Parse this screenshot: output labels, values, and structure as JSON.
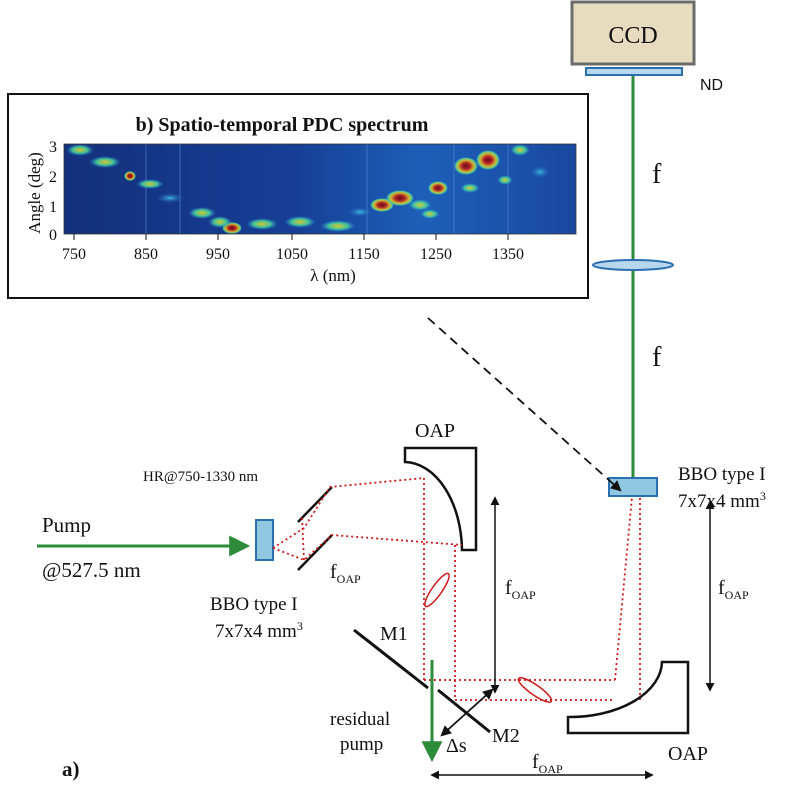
{
  "labels": {
    "ccd": "CCD",
    "nd": "ND",
    "f_top": "f",
    "f_bottom": "f",
    "bbo_right_1": "BBO type I",
    "bbo_right_2": "7x7x4 mm",
    "bbo_right_sup": "3",
    "bbo_left_1": "BBO type I",
    "bbo_left_2": "7x7x4 mm",
    "bbo_left_sup": "3",
    "oap_top": "OAP",
    "oap_bottom": "OAP",
    "hr": "HR@750-1330 nm",
    "pump": "Pump",
    "pump_wavelength": "@527.5 nm",
    "f_oap_main": "f",
    "f_oap_sub": "OAP",
    "m1": "M1",
    "m2": "M2",
    "delta_s": "Δs",
    "residual_1": "residual",
    "residual_2": "pump",
    "panel_a": "a)"
  },
  "inset": {
    "title": "b) Spatio-temporal  PDC spectrum",
    "ylabel": "Angle (deg)",
    "xlabel": "λ (nm)",
    "x_ticks": [
      "750",
      "850",
      "950",
      "1050",
      "1150",
      "1250",
      "1350"
    ],
    "y_ticks": [
      "0",
      "1",
      "2",
      "3"
    ],
    "colormap": "jet",
    "background_color": "#15307a"
  },
  "colors": {
    "pump_beam": "#2e8b3a",
    "signal_beam": "#d01818",
    "crystal_fill": "#8fc8e0",
    "ccd_fill": "#e8dcc0",
    "nd_fill": "#b7d7ec"
  }
}
